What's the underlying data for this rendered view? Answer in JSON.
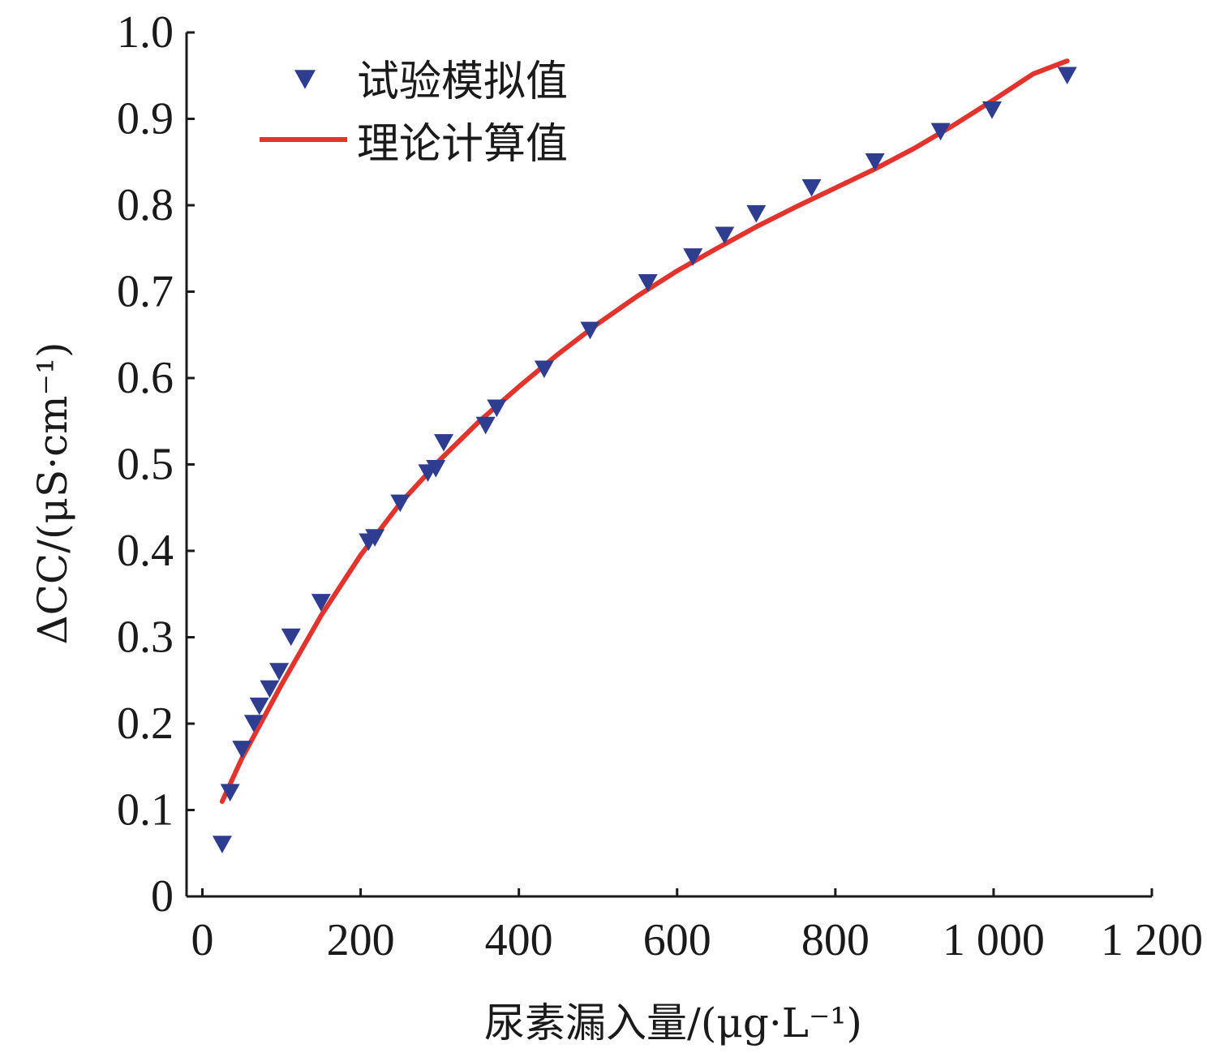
{
  "chart_data": {
    "type": "scatter",
    "xlabel": "尿素漏入量/(μg·L⁻¹)",
    "ylabel": "ΔCC/(μS·cm⁻¹)",
    "xlim": [
      -20,
      1200
    ],
    "ylim": [
      0,
      1.0
    ],
    "x_ticks": [
      0,
      200,
      400,
      600,
      800,
      1000,
      1200
    ],
    "x_tick_labels": [
      "0",
      "200",
      "400",
      "600",
      "800",
      "1 000",
      "1 200"
    ],
    "y_ticks": [
      0,
      0.1,
      0.2,
      0.3,
      0.4,
      0.5,
      0.6,
      0.7,
      0.8,
      0.9,
      1.0
    ],
    "y_tick_labels": [
      "0",
      "0.1",
      "0.2",
      "0.3",
      "0.4",
      "0.5",
      "0.6",
      "0.7",
      "0.8",
      "0.9",
      "1.0"
    ],
    "grid": false,
    "legend_position": "top-left",
    "series": [
      {
        "name": "试验模拟值",
        "kind": "scatter",
        "marker": "triangle-down",
        "color": "#2e3d8f",
        "points": [
          [
            25,
            0.06
          ],
          [
            35,
            0.12
          ],
          [
            50,
            0.17
          ],
          [
            65,
            0.2
          ],
          [
            72,
            0.22
          ],
          [
            85,
            0.24
          ],
          [
            97,
            0.26
          ],
          [
            112,
            0.3
          ],
          [
            150,
            0.34
          ],
          [
            210,
            0.41
          ],
          [
            218,
            0.415
          ],
          [
            250,
            0.455
          ],
          [
            285,
            0.49
          ],
          [
            295,
            0.495
          ],
          [
            305,
            0.525
          ],
          [
            358,
            0.545
          ],
          [
            372,
            0.565
          ],
          [
            432,
            0.61
          ],
          [
            490,
            0.655
          ],
          [
            563,
            0.71
          ],
          [
            620,
            0.74
          ],
          [
            660,
            0.765
          ],
          [
            700,
            0.79
          ],
          [
            770,
            0.82
          ],
          [
            850,
            0.85
          ],
          [
            933,
            0.885
          ],
          [
            998,
            0.91
          ],
          [
            1093,
            0.95
          ]
        ]
      },
      {
        "name": "理论计算值",
        "kind": "line",
        "color": "#e2342c",
        "points": [
          [
            25,
            0.11
          ],
          [
            50,
            0.16
          ],
          [
            100,
            0.245
          ],
          [
            150,
            0.325
          ],
          [
            200,
            0.395
          ],
          [
            250,
            0.455
          ],
          [
            300,
            0.505
          ],
          [
            350,
            0.55
          ],
          [
            400,
            0.59
          ],
          [
            450,
            0.628
          ],
          [
            500,
            0.663
          ],
          [
            550,
            0.695
          ],
          [
            600,
            0.724
          ],
          [
            650,
            0.75
          ],
          [
            700,
            0.775
          ],
          [
            750,
            0.798
          ],
          [
            800,
            0.82
          ],
          [
            850,
            0.842
          ],
          [
            900,
            0.866
          ],
          [
            950,
            0.893
          ],
          [
            1000,
            0.922
          ],
          [
            1050,
            0.952
          ],
          [
            1093,
            0.967
          ]
        ]
      }
    ]
  }
}
